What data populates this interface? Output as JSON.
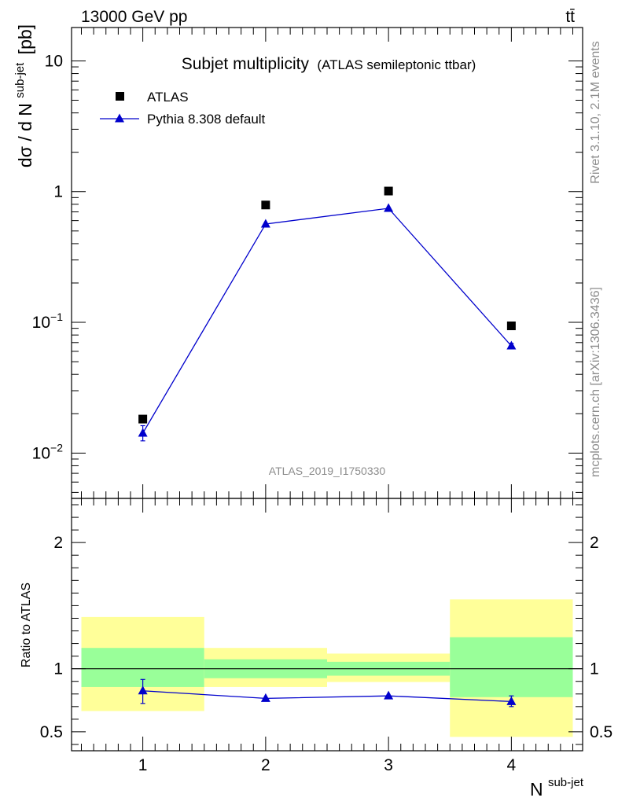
{
  "header": {
    "energy_label": "13000 GeV pp",
    "process_label": "tt̄"
  },
  "side": {
    "rivet_label": "Rivet 3.1.10,  2.1M events",
    "mcplots_label": "mcplots.cern.ch [arXiv:1306.3436]"
  },
  "chart_data": [
    {
      "type": "scatter",
      "panel": "main",
      "title": "Subjet multiplicity",
      "subtitle": "(ATLAS semileptonic ttbar)",
      "ylabel_main": "dσ / d N",
      "ylabel_sup": "sub-jet",
      "ylabel_unit": "[pb]",
      "yscale": "log",
      "ylim": [
        0.0045,
        18
      ],
      "xlim": [
        0.42,
        4.58
      ],
      "watermark": "ATLAS_2019_I1750330",
      "ytick_labels": [
        {
          "value": 0.01,
          "base": "10",
          "exp": "−2"
        },
        {
          "value": 0.1,
          "base": "10",
          "exp": "−1"
        },
        {
          "value": 1,
          "base": "1",
          "exp": ""
        },
        {
          "value": 10,
          "base": "10",
          "exp": ""
        }
      ],
      "legend_position": "top-left",
      "series": [
        {
          "name": "ATLAS",
          "marker": "square",
          "color": "#000000",
          "x": [
            1,
            2,
            3,
            4
          ],
          "y": [
            0.0182,
            0.79,
            1.01,
            0.094
          ]
        },
        {
          "name": "Pythia 8.308 default",
          "marker": "triangle",
          "color": "#0000cc",
          "x": [
            1,
            2,
            3,
            4
          ],
          "y": [
            0.0142,
            0.565,
            0.745,
            0.066
          ],
          "yerr_low": [
            0.0018,
            0.01,
            0.01,
            0.003
          ],
          "yerr_high": [
            0.002,
            0.01,
            0.01,
            0.003
          ]
        }
      ]
    },
    {
      "type": "scatter",
      "panel": "ratio",
      "ylabel": "Ratio to ATLAS",
      "xlabel_main": "N",
      "xlabel_sup": "sub-jet",
      "ylim": [
        0.35,
        2.35
      ],
      "xlim": [
        0.42,
        4.58
      ],
      "yticks": [
        0.5,
        1,
        2
      ],
      "ytick_labels": [
        "0.5",
        "1",
        "2"
      ],
      "xticks": [
        1,
        2,
        3,
        4
      ],
      "xtick_labels": [
        "1",
        "2",
        "3",
        "4"
      ],
      "reference_line": 1,
      "bands": [
        {
          "x0": 0.5,
          "x1": 1.5,
          "yellow": [
            0.665,
            1.41
          ],
          "green": [
            0.855,
            1.165
          ]
        },
        {
          "x0": 1.5,
          "x1": 2.5,
          "yellow": [
            0.855,
            1.165
          ],
          "green": [
            0.925,
            1.075
          ]
        },
        {
          "x0": 2.5,
          "x1": 3.5,
          "yellow": [
            0.895,
            1.12
          ],
          "green": [
            0.945,
            1.055
          ]
        },
        {
          "x0": 3.5,
          "x1": 4.5,
          "yellow": [
            0.46,
            1.55
          ],
          "green": [
            0.775,
            1.25
          ]
        }
      ],
      "band_colors": {
        "yellow": "#ffff99",
        "green": "#99ff99"
      },
      "series": [
        {
          "name": "Pythia 8.308 default",
          "color": "#0000cc",
          "x": [
            1,
            2,
            3,
            4
          ],
          "y": [
            0.825,
            0.765,
            0.785,
            0.74
          ],
          "yerr_low": [
            0.1,
            0.01,
            0.01,
            0.04
          ],
          "yerr_high": [
            0.09,
            0.01,
            0.01,
            0.045
          ]
        }
      ]
    }
  ]
}
